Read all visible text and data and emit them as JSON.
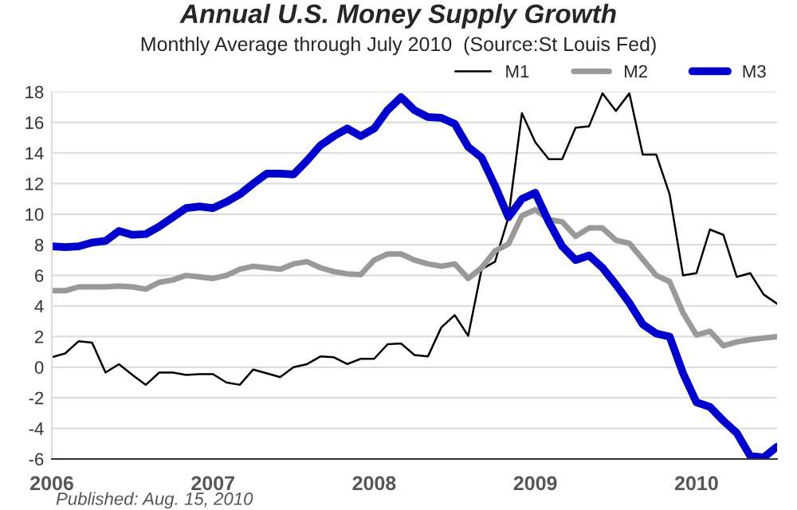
{
  "chart_data": {
    "type": "line",
    "title": "Annual U.S. Money Supply Growth",
    "subtitle": "Monthly Average through July 2010  (Source:St Louis Fed)",
    "annotations": [
      "Published: Aug. 15, 2010"
    ],
    "x": [
      "2006-01",
      "2006-02",
      "2006-03",
      "2006-04",
      "2006-05",
      "2006-06",
      "2006-07",
      "2006-08",
      "2006-09",
      "2006-10",
      "2006-11",
      "2006-12",
      "2007-01",
      "2007-02",
      "2007-03",
      "2007-04",
      "2007-05",
      "2007-06",
      "2007-07",
      "2007-08",
      "2007-09",
      "2007-10",
      "2007-11",
      "2007-12",
      "2008-01",
      "2008-02",
      "2008-03",
      "2008-04",
      "2008-05",
      "2008-06",
      "2008-07",
      "2008-08",
      "2008-09",
      "2008-10",
      "2008-11",
      "2008-12",
      "2009-01",
      "2009-02",
      "2009-03",
      "2009-04",
      "2009-05",
      "2009-06",
      "2009-07",
      "2009-08",
      "2009-09",
      "2009-10",
      "2009-11",
      "2009-12",
      "2010-01",
      "2010-02",
      "2010-03",
      "2010-04",
      "2010-05",
      "2010-06",
      "2010-07"
    ],
    "series": [
      {
        "name": "M1",
        "color": "#000000",
        "values": [
          0.65,
          0.9,
          1.7,
          1.6,
          -0.35,
          0.2,
          -0.5,
          -1.15,
          -0.35,
          -0.35,
          -0.5,
          -0.45,
          -0.45,
          -1.0,
          -1.15,
          -0.15,
          -0.4,
          -0.65,
          0.0,
          0.2,
          0.7,
          0.65,
          0.2,
          0.55,
          0.55,
          1.5,
          1.55,
          0.8,
          0.7,
          2.6,
          3.4,
          2.05,
          6.4,
          6.9,
          9.8,
          16.6,
          14.7,
          13.6,
          13.6,
          15.65,
          15.75,
          17.9,
          16.75,
          17.9,
          13.9,
          13.9,
          11.3,
          6.0,
          6.15,
          9.0,
          8.65,
          5.9,
          6.15,
          4.75,
          4.15
        ]
      },
      {
        "name": "M2",
        "color": "#999999",
        "values": [
          5.0,
          5.0,
          5.25,
          5.25,
          5.25,
          5.3,
          5.25,
          5.1,
          5.55,
          5.7,
          6.0,
          5.9,
          5.8,
          6.0,
          6.4,
          6.6,
          6.5,
          6.4,
          6.75,
          6.9,
          6.5,
          6.25,
          6.1,
          6.05,
          7.0,
          7.4,
          7.4,
          7.0,
          6.75,
          6.6,
          6.75,
          5.8,
          6.5,
          7.6,
          8.05,
          9.9,
          10.3,
          9.65,
          9.5,
          8.55,
          9.1,
          9.1,
          8.3,
          8.1,
          7.05,
          6.0,
          5.6,
          3.55,
          2.1,
          2.35,
          1.4,
          1.65,
          1.8,
          1.9,
          2.0
        ]
      },
      {
        "name": "M3",
        "color": "#0000cc",
        "values": [
          7.9,
          7.85,
          7.9,
          8.15,
          8.25,
          8.9,
          8.65,
          8.7,
          9.2,
          9.8,
          10.4,
          10.5,
          10.4,
          10.8,
          11.3,
          12.0,
          12.65,
          12.65,
          12.6,
          13.5,
          14.5,
          15.1,
          15.6,
          15.1,
          15.6,
          16.8,
          17.65,
          16.8,
          16.35,
          16.3,
          15.9,
          14.4,
          13.7,
          11.85,
          9.8,
          11.0,
          11.4,
          9.5,
          7.9,
          7.0,
          7.3,
          6.5,
          5.4,
          4.2,
          2.8,
          2.2,
          2.0,
          -0.4,
          -2.3,
          -2.6,
          -3.5,
          -4.3,
          -5.8,
          -5.9,
          -5.2
        ]
      }
    ],
    "xlim": [
      "2006-01",
      "2010-07"
    ],
    "xticks": [
      {
        "value": "2006",
        "label": "2006"
      },
      {
        "value": "2007",
        "label": "2007"
      },
      {
        "value": "2008",
        "label": "2008"
      },
      {
        "value": "2009",
        "label": "2009"
      },
      {
        "value": "2010",
        "label": "2010"
      }
    ],
    "ylim": [
      -6,
      18
    ],
    "yticks": [
      -6,
      -4,
      -2,
      0,
      2,
      4,
      6,
      8,
      10,
      12,
      14,
      16,
      18
    ],
    "grid": "y",
    "legend": "top",
    "marker": "none",
    "line_style": "solid"
  }
}
